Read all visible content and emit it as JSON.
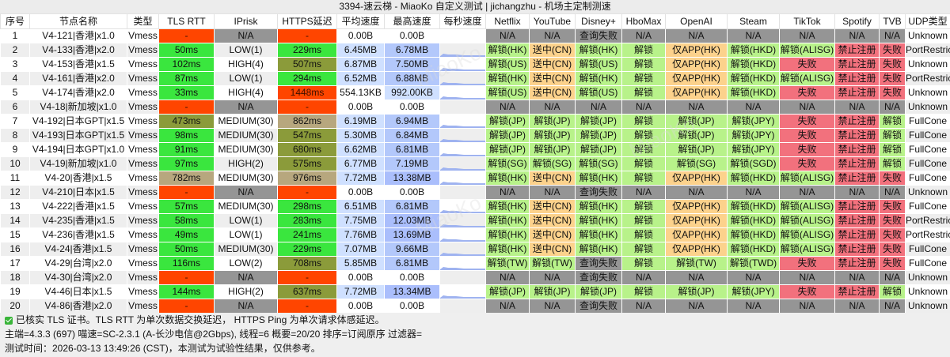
{
  "title": "3394-速云梯 - MiaoKo 自定义测试 | jichangzhu - 机场主定制测速",
  "columns": [
    "序号",
    "节点名称",
    "类型",
    "TLS RTT",
    "IPrisk",
    "HTTPS延迟",
    "平均速度",
    "最高速度",
    "每秒速度",
    "Netflix",
    "YouTube",
    "Disney+",
    "HboMax",
    "OpenAI",
    "Steam",
    "TikTok",
    "Spotify",
    "TVB",
    "UDP类型"
  ],
  "rows": [
    {
      "cells": [
        "1",
        "V4-121|香港|x1.0",
        "Vmess",
        "-",
        "N/A",
        "-",
        "0.00B",
        "0.00B",
        "",
        "N/A",
        "N/A",
        "查询失败",
        "N/A",
        "N/A",
        "N/A",
        "N/A",
        "N/A",
        "N/A",
        "Unknown"
      ],
      "c": [
        "",
        "",
        "",
        "red",
        "gray",
        "red",
        "white",
        "white",
        "",
        "gray",
        "gray",
        "gray",
        "gray",
        "gray",
        "gray",
        "gray",
        "gray",
        "gray",
        ""
      ]
    },
    {
      "cells": [
        "2",
        "V4-133|香港|x2.0",
        "Vmess",
        "50ms",
        "LOW(1)",
        "229ms",
        "6.45MB",
        "6.78MB",
        "",
        "解锁(HK)",
        "送中(CN)",
        "解锁(HK)",
        "解锁",
        "仅APP(HK)",
        "解锁(HKD)",
        "解锁(ALISG)",
        "禁止注册",
        "失败",
        "PortRestrictedCone"
      ],
      "c": [
        "",
        "",
        "",
        "green",
        "",
        "green",
        "spd",
        "spd2",
        "",
        "lgreen",
        "orange",
        "lgreen",
        "lgreen",
        "orange",
        "lgreen",
        "lgreen",
        "pink",
        "pink",
        ""
      ]
    },
    {
      "cells": [
        "3",
        "V4-153|香港|x1.5",
        "Vmess",
        "102ms",
        "HIGH(4)",
        "507ms",
        "6.87MB",
        "7.50MB",
        "",
        "解锁(US)",
        "送中(CN)",
        "解锁(US)",
        "解锁",
        "仅APP(HK)",
        "解锁(HKD)",
        "失败",
        "禁止注册",
        "失败",
        "Unknown"
      ],
      "c": [
        "",
        "",
        "",
        "green",
        "",
        "olive",
        "spd",
        "spd2",
        "",
        "lgreen",
        "orange",
        "lgreen",
        "lgreen",
        "orange",
        "lgreen",
        "pink",
        "pink",
        "pink",
        ""
      ]
    },
    {
      "cells": [
        "4",
        "V4-161|香港|x2.0",
        "Vmess",
        "87ms",
        "LOW(1)",
        "294ms",
        "6.52MB",
        "6.88MB",
        "",
        "解锁(HK)",
        "送中(CN)",
        "解锁(HK)",
        "解锁",
        "仅APP(HK)",
        "解锁(HKD)",
        "解锁(ALISG)",
        "禁止注册",
        "失败",
        "PortRestrictedCone"
      ],
      "c": [
        "",
        "",
        "",
        "green",
        "",
        "green",
        "spd",
        "spd2",
        "",
        "lgreen",
        "orange",
        "lgreen",
        "lgreen",
        "orange",
        "lgreen",
        "lgreen",
        "pink",
        "pink",
        ""
      ]
    },
    {
      "cells": [
        "5",
        "V4-174|香港|x2.0",
        "Vmess",
        "33ms",
        "HIGH(4)",
        "1448ms",
        "554.13KB",
        "992.00KB",
        "",
        "解锁(US)",
        "送中(CN)",
        "解锁(US)",
        "解锁",
        "仅APP(HK)",
        "解锁(HKD)",
        "失败",
        "禁止注册",
        "失败",
        "Unknown"
      ],
      "c": [
        "",
        "",
        "",
        "green",
        "",
        "red",
        "white",
        "spd",
        "",
        "lgreen",
        "orange",
        "lgreen",
        "lgreen",
        "orange",
        "lgreen",
        "pink",
        "pink",
        "pink",
        ""
      ]
    },
    {
      "cells": [
        "6",
        "V4-18|新加坡|x1.0",
        "Vmess",
        "-",
        "N/A",
        "-",
        "0.00B",
        "0.00B",
        "",
        "N/A",
        "N/A",
        "N/A",
        "N/A",
        "N/A",
        "N/A",
        "N/A",
        "N/A",
        "N/A",
        "Unknown"
      ],
      "c": [
        "",
        "",
        "",
        "red",
        "gray",
        "red",
        "white",
        "white",
        "",
        "gray",
        "gray",
        "gray",
        "gray",
        "gray",
        "gray",
        "gray",
        "gray",
        "gray",
        ""
      ]
    },
    {
      "cells": [
        "7",
        "V4-192|日本GPT|x1.5",
        "Vmess",
        "473ms",
        "MEDIUM(30)",
        "862ms",
        "6.19MB",
        "6.94MB",
        "",
        "解锁(JP)",
        "解锁(JP)",
        "解锁(JP)",
        "解锁",
        "解锁(JP)",
        "解锁(JPY)",
        "失败",
        "禁止注册",
        "解锁",
        "FullCone"
      ],
      "c": [
        "",
        "",
        "",
        "olive",
        "",
        "sand",
        "spd",
        "spd2",
        "",
        "lgreen",
        "lgreen",
        "lgreen",
        "lgreen",
        "lgreen",
        "lgreen",
        "pink",
        "pink",
        "lgreen",
        ""
      ]
    },
    {
      "cells": [
        "8",
        "V4-193|日本GPT|x1.5",
        "Vmess",
        "98ms",
        "MEDIUM(30)",
        "547ms",
        "5.30MB",
        "6.84MB",
        "",
        "解锁(JP)",
        "解锁(JP)",
        "解锁(JP)",
        "解锁",
        "解锁(JP)",
        "解锁(JPY)",
        "失败",
        "禁止注册",
        "解锁",
        "FullCone"
      ],
      "c": [
        "",
        "",
        "",
        "green",
        "",
        "olive",
        "spd",
        "spd2",
        "",
        "lgreen",
        "lgreen",
        "lgreen",
        "lgreen",
        "lgreen",
        "lgreen",
        "pink",
        "pink",
        "lgreen",
        ""
      ]
    },
    {
      "cells": [
        "9",
        "V4-194|日本GPT|x1.0",
        "Vmess",
        "91ms",
        "MEDIUM(30)",
        "680ms",
        "6.62MB",
        "6.81MB",
        "",
        "解锁(JP)",
        "解锁(JP)",
        "解锁(JP)",
        "解锁",
        "解锁(JP)",
        "解锁(JPY)",
        "失败",
        "禁止注册",
        "解锁",
        "FullCone"
      ],
      "c": [
        "",
        "",
        "",
        "green",
        "",
        "olive",
        "spd",
        "spd2",
        "",
        "lgreen",
        "lgreen",
        "lgreen",
        "lgreen",
        "lgreen",
        "lgreen",
        "pink",
        "pink",
        "lgreen",
        ""
      ]
    },
    {
      "cells": [
        "10",
        "V4-19|新加坡|x1.0",
        "Vmess",
        "97ms",
        "HIGH(2)",
        "575ms",
        "6.77MB",
        "7.19MB",
        "",
        "解锁(SG)",
        "解锁(SG)",
        "解锁(SG)",
        "解锁",
        "解锁(SG)",
        "解锁(SGD)",
        "失败",
        "禁止注册",
        "解锁",
        "FullCone"
      ],
      "c": [
        "",
        "",
        "",
        "green",
        "",
        "olive",
        "spd",
        "spd2",
        "",
        "lgreen",
        "lgreen",
        "lgreen",
        "lgreen",
        "lgreen",
        "lgreen",
        "pink",
        "pink",
        "lgreen",
        ""
      ]
    },
    {
      "cells": [
        "11",
        "V4-20|香港|x1.5",
        "Vmess",
        "782ms",
        "MEDIUM(30)",
        "976ms",
        "7.72MB",
        "13.38MB",
        "",
        "解锁(HK)",
        "送中(CN)",
        "解锁(HK)",
        "解锁",
        "仅APP(HK)",
        "解锁(HKD)",
        "解锁(ALISG)",
        "禁止注册",
        "失败",
        "FullCone"
      ],
      "c": [
        "",
        "",
        "",
        "sand",
        "",
        "sand",
        "spd",
        "spd3",
        "",
        "lgreen",
        "orange",
        "lgreen",
        "lgreen",
        "orange",
        "lgreen",
        "lgreen",
        "pink",
        "pink",
        ""
      ]
    },
    {
      "cells": [
        "12",
        "V4-210|日本|x1.5",
        "Vmess",
        "-",
        "N/A",
        "-",
        "0.00B",
        "0.00B",
        "",
        "N/A",
        "N/A",
        "查询失败",
        "N/A",
        "N/A",
        "N/A",
        "N/A",
        "N/A",
        "N/A",
        "Unknown"
      ],
      "c": [
        "",
        "",
        "",
        "red",
        "gray",
        "red",
        "white",
        "white",
        "",
        "gray",
        "gray",
        "gray",
        "gray",
        "gray",
        "gray",
        "gray",
        "gray",
        "gray",
        ""
      ]
    },
    {
      "cells": [
        "13",
        "V4-222|香港|x1.5",
        "Vmess",
        "57ms",
        "MEDIUM(30)",
        "298ms",
        "6.51MB",
        "6.81MB",
        "",
        "解锁(HK)",
        "送中(CN)",
        "解锁(HK)",
        "解锁",
        "仅APP(HK)",
        "解锁(HKD)",
        "解锁(ALISG)",
        "禁止注册",
        "失败",
        "FullCone"
      ],
      "c": [
        "",
        "",
        "",
        "green",
        "",
        "green",
        "spd",
        "spd2",
        "",
        "lgreen",
        "orange",
        "lgreen",
        "lgreen",
        "orange",
        "lgreen",
        "lgreen",
        "pink",
        "pink",
        ""
      ]
    },
    {
      "cells": [
        "14",
        "V4-235|香港|x1.5",
        "Vmess",
        "58ms",
        "LOW(1)",
        "283ms",
        "7.75MB",
        "12.03MB",
        "",
        "解锁(HK)",
        "送中(CN)",
        "解锁(HK)",
        "解锁",
        "仅APP(HK)",
        "解锁(HKD)",
        "解锁(ALISG)",
        "禁止注册",
        "失败",
        "PortRestrictedCone"
      ],
      "c": [
        "",
        "",
        "",
        "green",
        "",
        "green",
        "spd",
        "spd3",
        "",
        "lgreen",
        "orange",
        "lgreen",
        "lgreen",
        "orange",
        "lgreen",
        "lgreen",
        "pink",
        "pink",
        ""
      ]
    },
    {
      "cells": [
        "15",
        "V4-236|香港|x1.5",
        "Vmess",
        "49ms",
        "LOW(1)",
        "241ms",
        "7.76MB",
        "13.69MB",
        "",
        "解锁(HK)",
        "送中(CN)",
        "解锁(HK)",
        "解锁",
        "仅APP(HK)",
        "解锁(HKD)",
        "解锁(ALISG)",
        "禁止注册",
        "失败",
        "PortRestrictedCone"
      ],
      "c": [
        "",
        "",
        "",
        "green",
        "",
        "green",
        "spd",
        "spd3",
        "",
        "lgreen",
        "orange",
        "lgreen",
        "lgreen",
        "orange",
        "lgreen",
        "lgreen",
        "pink",
        "pink",
        ""
      ]
    },
    {
      "cells": [
        "16",
        "V4-24|香港|x1.5",
        "Vmess",
        "50ms",
        "MEDIUM(30)",
        "229ms",
        "7.07MB",
        "9.66MB",
        "",
        "解锁(HK)",
        "送中(CN)",
        "解锁(HK)",
        "解锁",
        "仅APP(HK)",
        "解锁(HKD)",
        "解锁(ALISG)",
        "禁止注册",
        "失败",
        "FullCone"
      ],
      "c": [
        "",
        "",
        "",
        "green",
        "",
        "green",
        "spd",
        "spd2",
        "",
        "lgreen",
        "orange",
        "lgreen",
        "lgreen",
        "orange",
        "lgreen",
        "lgreen",
        "pink",
        "pink",
        ""
      ]
    },
    {
      "cells": [
        "17",
        "V4-29|台湾|x2.0",
        "Vmess",
        "116ms",
        "LOW(2)",
        "708ms",
        "5.85MB",
        "6.81MB",
        "",
        "解锁(TW)",
        "解锁(TW)",
        "查询失败",
        "解锁",
        "解锁(TW)",
        "解锁(TWD)",
        "失败",
        "禁止注册",
        "失败",
        "FullCone"
      ],
      "c": [
        "",
        "",
        "",
        "green",
        "",
        "olive",
        "spd",
        "spd2",
        "",
        "lgreen",
        "lgreen",
        "gray",
        "lgreen",
        "lgreen",
        "lgreen",
        "pink",
        "pink",
        "pink",
        ""
      ]
    },
    {
      "cells": [
        "18",
        "V4-30|台湾|x2.0",
        "Vmess",
        "-",
        "N/A",
        "-",
        "0.00B",
        "0.00B",
        "",
        "N/A",
        "N/A",
        "查询失败",
        "N/A",
        "N/A",
        "N/A",
        "N/A",
        "N/A",
        "N/A",
        "Unknown"
      ],
      "c": [
        "",
        "",
        "",
        "red",
        "gray",
        "red",
        "white",
        "white",
        "",
        "gray",
        "gray",
        "gray",
        "gray",
        "gray",
        "gray",
        "gray",
        "gray",
        "gray",
        ""
      ]
    },
    {
      "cells": [
        "19",
        "V4-46|日本|x1.5",
        "Vmess",
        "144ms",
        "HIGH(2)",
        "637ms",
        "7.72MB",
        "13.34MB",
        "",
        "解锁(JP)",
        "解锁(JP)",
        "解锁(JP)",
        "解锁",
        "解锁(JP)",
        "解锁(JPY)",
        "失败",
        "禁止注册",
        "解锁",
        "Unknown"
      ],
      "c": [
        "",
        "",
        "",
        "green",
        "",
        "olive",
        "spd",
        "spd3",
        "",
        "lgreen",
        "lgreen",
        "lgreen",
        "lgreen",
        "lgreen",
        "lgreen",
        "pink",
        "pink",
        "lgreen",
        ""
      ]
    },
    {
      "cells": [
        "20",
        "V4-86|香港|x2.0",
        "Vmess",
        "-",
        "N/A",
        "-",
        "0.00B",
        "0.00B",
        "",
        "N/A",
        "N/A",
        "查询失败",
        "N/A",
        "N/A",
        "N/A",
        "N/A",
        "N/A",
        "N/A",
        "Unknown"
      ],
      "c": [
        "",
        "",
        "",
        "red",
        "gray",
        "red",
        "white",
        "white",
        "",
        "gray",
        "gray",
        "gray",
        "gray",
        "gray",
        "gray",
        "gray",
        "gray",
        "gray",
        ""
      ]
    }
  ],
  "footer": {
    "line1": "已核实 TLS 证书。TLS RTT 为单次数据交换延迟， HTTPS Ping 为单次请求体感延迟。",
    "line2": "主端=4.3.3 (697) 喵速=SC-2.3.1 (A-长沙电信@2Gbps), 线程=6 概要=20/20 排序=订阅原序 过滤器=",
    "line3": "测试时间：2026-03-13 13:49:26 (CST)，本测试为试验性结果，仅供参考。"
  },
  "watermark": "MiaoKo",
  "colors": {
    "red": "#ff4500",
    "green": "#3ae63e",
    "olive": "#8b9b3a",
    "gray": "#959595",
    "sand": "#b7a77e",
    "lgreen": "#b8f28a",
    "orange": "#fcd28c",
    "pink": "#f2717d",
    "speed": "#cfe0ff",
    "sparkline": "#9fb3f0"
  }
}
